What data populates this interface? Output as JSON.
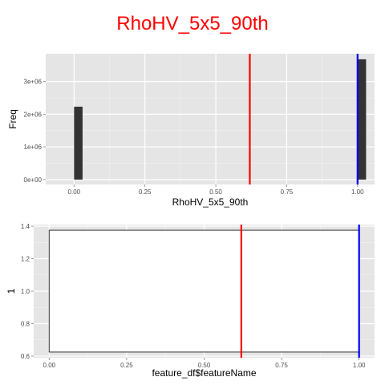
{
  "title": "RhoHV_5x5_90th",
  "colors": {
    "title": "#ff0000",
    "panel_bg": "#e5e5e5",
    "grid_major": "#ffffff",
    "grid_minor": "#f2f2f2",
    "bar_fill": "#333333",
    "box_fill": "#ffffff",
    "box_stroke": "#333333",
    "line_red": "#ff0000",
    "line_blue": "#0000ff"
  },
  "chart_data": [
    {
      "type": "bar",
      "subtype": "histogram",
      "xlabel": "RhoHV_5x5_90th",
      "ylabel": "Freq",
      "x_range": [
        -0.1,
        1.06
      ],
      "y_range": [
        -150000,
        3850000
      ],
      "x_ticks": [
        0.0,
        0.25,
        0.5,
        0.75,
        1.0
      ],
      "x_tick_labels": [
        "0.00",
        "0.25",
        "0.50",
        "0.75",
        "1.00"
      ],
      "y_ticks": [
        0,
        1000000,
        2000000,
        3000000
      ],
      "y_tick_labels": [
        "0e+00",
        "1e+06",
        "2e+06",
        "3e+06"
      ],
      "bins": [
        {
          "x0": 0.0,
          "x1": 0.03,
          "count": 2230000
        },
        {
          "x0": 1.0,
          "x1": 1.03,
          "count": 3680000
        }
      ],
      "vlines": [
        {
          "x": 0.62,
          "color": "red"
        },
        {
          "x": 1.0,
          "color": "blue"
        }
      ],
      "grid": true
    },
    {
      "type": "boxplot",
      "xlabel": "feature_df$featureName",
      "ylabel": "1",
      "x_range": [
        -0.05,
        1.05
      ],
      "y_range": [
        0.59,
        1.41
      ],
      "x_ticks": [
        0.0,
        0.25,
        0.5,
        0.75,
        1.0
      ],
      "x_tick_labels": [
        "0.00",
        "0.25",
        "0.50",
        "0.75",
        "1.00"
      ],
      "y_ticks": [
        0.6,
        0.8,
        1.0,
        1.2,
        1.4
      ],
      "y_tick_labels": [
        "0.6",
        "0.8",
        "1.0",
        "1.2",
        "1.4"
      ],
      "box": {
        "x0": 0.0,
        "x1": 1.0,
        "y0": 0.625,
        "y1": 1.375
      },
      "vlines": [
        {
          "x": 0.62,
          "color": "red"
        },
        {
          "x": 1.0,
          "color": "blue"
        }
      ],
      "grid": true
    }
  ]
}
